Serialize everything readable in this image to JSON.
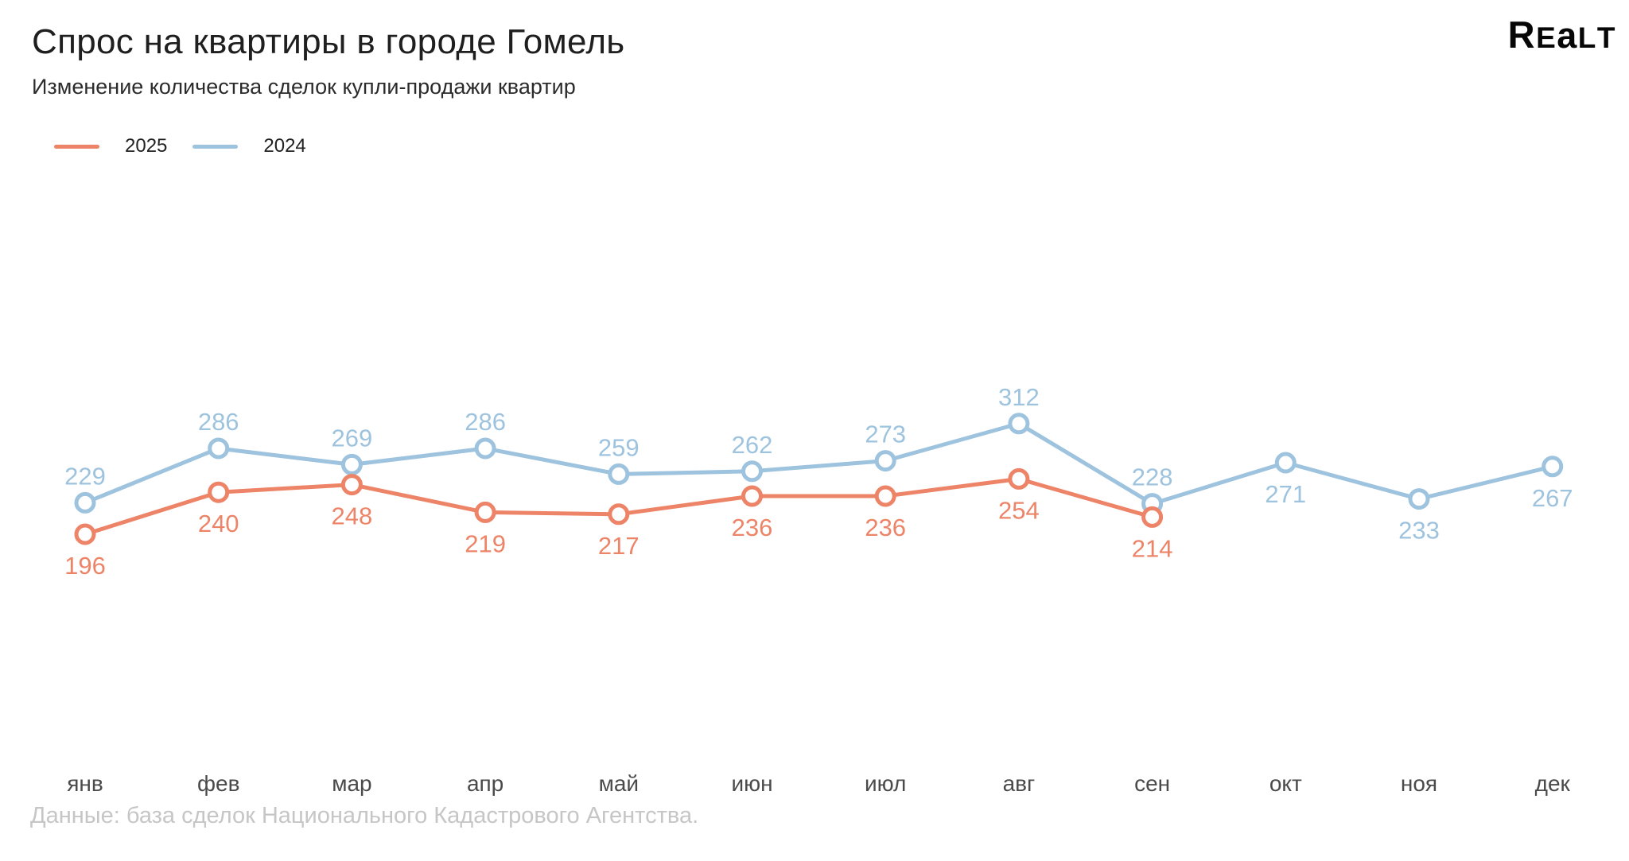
{
  "header": {
    "title": "Спрос на квартиры в городе Гомель",
    "subtitle": "Изменение количества сделок купли-продажи квартир",
    "logo_text": "Realt"
  },
  "legend": [
    {
      "label": "2025",
      "color": "#ED8468"
    },
    {
      "label": "2024",
      "color": "#9EC3DE"
    }
  ],
  "chart_data": {
    "type": "line",
    "title": "Спрос на квартиры в городе Гомель",
    "subtitle": "Изменение количества сделок купли-продажи квартир",
    "categories": [
      "янв",
      "фев",
      "мар",
      "апр",
      "май",
      "июн",
      "июл",
      "авг",
      "сен",
      "окт",
      "ноя",
      "дек"
    ],
    "series": [
      {
        "name": "2025",
        "color": "#ED8468",
        "values": [
          196,
          240,
          248,
          219,
          217,
          236,
          236,
          254,
          214
        ],
        "label_positions": [
          "below",
          "below",
          "below",
          "below",
          "below",
          "below",
          "below",
          "below",
          "below"
        ]
      },
      {
        "name": "2024",
        "color": "#9EC3DE",
        "values": [
          229,
          286,
          269,
          286,
          259,
          262,
          273,
          312,
          228,
          271,
          233,
          267
        ],
        "label_positions": [
          "above",
          "above",
          "above",
          "above",
          "above",
          "above",
          "above",
          "above",
          "above",
          "below",
          "below",
          "below"
        ]
      }
    ],
    "data_labels": true,
    "grid": false,
    "axes_visible": false,
    "legend_position": "top-left",
    "value_range_hint": [
      196,
      312
    ]
  },
  "footer": {
    "source": "Данные: база сделок Национального Кадастрового Агентства."
  },
  "colors": {
    "series_2025": "#ED8468",
    "series_2024": "#9EC3DE",
    "axis_text": "#4a4a4a",
    "footer_text": "#c6c6c6",
    "logo": "#070707"
  }
}
